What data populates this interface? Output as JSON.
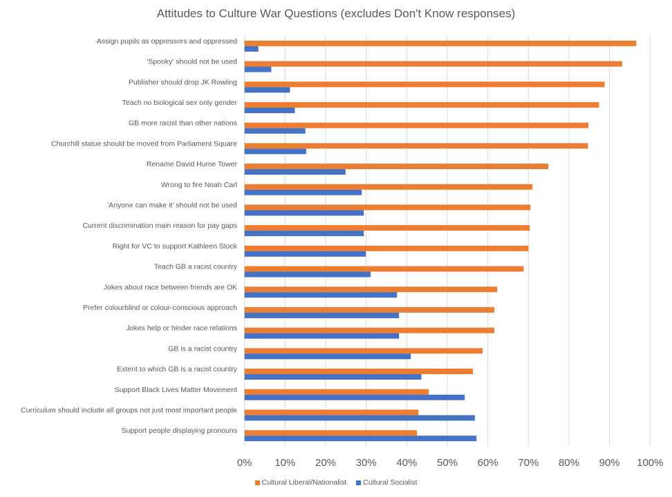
{
  "chart_data": {
    "type": "bar",
    "orientation": "horizontal",
    "title": "Attitudes to Culture War Questions (excludes Don't Know responses)",
    "xlabel": "",
    "ylabel": "",
    "xlim": [
      0,
      100
    ],
    "x_tick_labels": [
      "0%",
      "10%",
      "20%",
      "30%",
      "40%",
      "50%",
      "60%",
      "70%",
      "80%",
      "90%",
      "100%"
    ],
    "grid": "vertical",
    "legend_position": "bottom",
    "categories": [
      "Assign pupils as oppressors and oppressed",
      "'Spooky' should not be used",
      "Publisher should drop JK Rowling",
      "Teach no biological sex only gender",
      "GB more racist than other nations",
      "Churchill statue should be moved from Parliament Square",
      "Rename David Hume Tower",
      "Wrong to fire Noah Carl",
      "'Anyone can make it' should not be used",
      "Current discrimination main reason for pay gaps",
      "Right for VC to support Kathleen Stock",
      "Teach GB a racist country",
      "Jokes about race between friends are OK",
      "Prefer colourblind or colour-conscious approach",
      "Jokes help or hinder race relations",
      "GB is a racist country",
      "Extent to which GB is a racist country",
      "Support Black Lives Matter Movement",
      "Curriculum should include all groups not just most important people",
      "Support people displaying pronouns"
    ],
    "series": [
      {
        "name": "Cultural Liberal/Nationalist",
        "color": "#ED7D31",
        "values": [
          96.6,
          93.1,
          88.8,
          87.4,
          84.8,
          84.7,
          74.9,
          71.0,
          70.5,
          70.3,
          70.0,
          68.8,
          62.3,
          61.6,
          61.6,
          58.7,
          56.3,
          45.4,
          42.9,
          42.5
        ]
      },
      {
        "name": "Cultural Socialist",
        "color": "#4472C4",
        "values": [
          3.4,
          6.6,
          11.2,
          12.4,
          15.0,
          15.2,
          24.9,
          28.9,
          29.4,
          29.4,
          29.9,
          31.1,
          37.6,
          38.1,
          38.1,
          41.0,
          43.6,
          54.3,
          56.8,
          57.2
        ]
      }
    ]
  }
}
